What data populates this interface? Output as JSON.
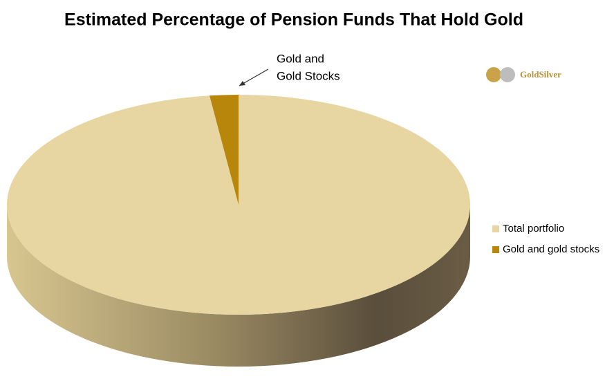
{
  "chart_data": {
    "type": "pie",
    "title": "Estimated Percentage of Pension Funds That Hold Gold",
    "categories": [
      "Total portfolio",
      "Gold and gold stocks"
    ],
    "values": [
      98,
      2
    ],
    "colors": [
      "#e8d6a2",
      "#b8860b"
    ],
    "annotation": [
      "Gold and",
      "Gold Stocks"
    ],
    "legend": "right"
  },
  "logo": "GoldSilver"
}
